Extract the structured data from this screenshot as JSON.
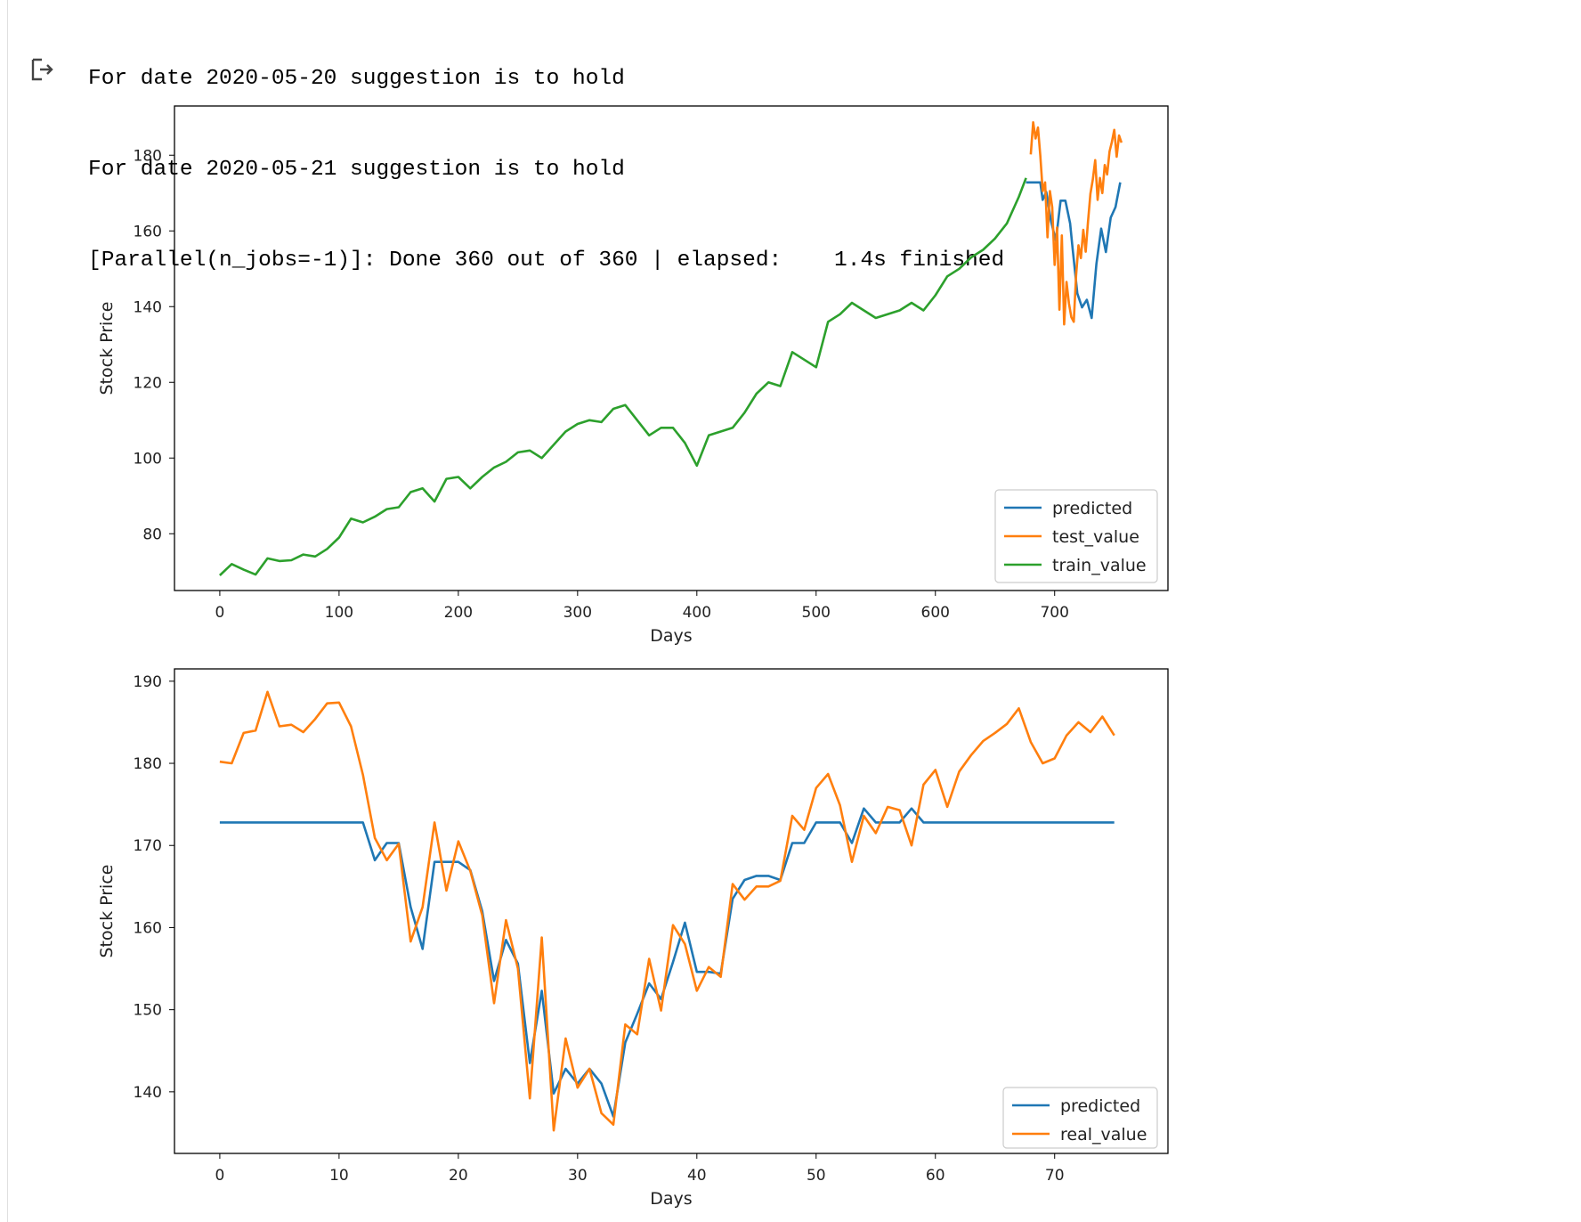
{
  "console": {
    "lines": [
      "For date 2020-05-20 suggestion is to hold",
      "For date 2020-05-21 suggestion is to hold",
      "[Parallel(n_jobs=-1)]: Done 360 out of 360 | elapsed:    1.4s finished"
    ],
    "output_icon": "output-arrow-icon"
  },
  "colors": {
    "predicted": "#1f77b4",
    "test_value": "#ff7f0e",
    "train_value": "#2ca02c",
    "real_value": "#ff7f0e"
  },
  "chart_data": [
    {
      "type": "line",
      "xlabel": "Days",
      "ylabel": "Stock Price",
      "xlim": [
        -38,
        795
      ],
      "ylim": [
        65,
        193
      ],
      "xticks": [
        0,
        100,
        200,
        300,
        400,
        500,
        600,
        700
      ],
      "yticks": [
        80,
        100,
        120,
        140,
        160,
        180
      ],
      "legend": "lower right",
      "grid": false,
      "series": [
        {
          "name": "predicted",
          "x": [
            676,
            688,
            690,
            693,
            697,
            701,
            705,
            709,
            713,
            715,
            719,
            723,
            727,
            731,
            735,
            739,
            743,
            747,
            751,
            755
          ],
          "y": [
            172.8,
            172.8,
            168.2,
            170.3,
            162.5,
            157.4,
            168.0,
            168.0,
            162.0,
            155.6,
            143.5,
            139.8,
            141.8,
            137.0,
            151.2,
            160.6,
            154.4,
            163.5,
            166.3,
            172.8
          ]
        },
        {
          "name": "test_value",
          "x": [
            680,
            682,
            684,
            686,
            688,
            690,
            692,
            694,
            696,
            698,
            700,
            702,
            704,
            706,
            708,
            710,
            712,
            714,
            716,
            718,
            720,
            722,
            724,
            726,
            728,
            730,
            732,
            734,
            736,
            738,
            740,
            742,
            744,
            746,
            748,
            750,
            752,
            754,
            756
          ],
          "y": [
            180.2,
            188.7,
            184.4,
            187.3,
            180.0,
            170.5,
            172.8,
            158.3,
            170.5,
            166.3,
            151.0,
            160.9,
            139.2,
            158.8,
            135.3,
            146.5,
            140.8,
            137.2,
            136.0,
            148.2,
            156.2,
            152.8,
            160.3,
            154.5,
            162.4,
            169.8,
            173.6,
            178.7,
            168.2,
            174.0,
            170.0,
            177.4,
            174.9,
            181.0,
            183.5,
            186.7,
            179.6,
            185.2,
            183.3
          ]
        },
        {
          "name": "train_value",
          "x": [
            0,
            10,
            20,
            30,
            40,
            50,
            60,
            70,
            80,
            90,
            100,
            110,
            120,
            130,
            140,
            150,
            160,
            170,
            180,
            190,
            200,
            210,
            220,
            230,
            240,
            250,
            260,
            270,
            280,
            290,
            300,
            310,
            320,
            330,
            340,
            350,
            360,
            370,
            380,
            390,
            400,
            410,
            420,
            430,
            440,
            450,
            460,
            470,
            480,
            490,
            500,
            510,
            520,
            530,
            540,
            550,
            560,
            570,
            580,
            590,
            600,
            610,
            620,
            630,
            640,
            650,
            660,
            670,
            676
          ],
          "y": [
            69.0,
            72.0,
            70.5,
            69.2,
            73.5,
            72.8,
            73.0,
            74.5,
            74.0,
            76.0,
            79.0,
            84.0,
            83.0,
            84.5,
            86.5,
            87.0,
            91.0,
            92.0,
            88.5,
            94.5,
            95.0,
            92.0,
            95.0,
            97.5,
            99.0,
            101.5,
            102.0,
            100.0,
            103.5,
            107.0,
            109.0,
            110.0,
            109.5,
            113.0,
            114.0,
            110.0,
            106.0,
            108.0,
            108.0,
            104.0,
            98.0,
            106.0,
            107.0,
            108.0,
            112.0,
            117.0,
            120.0,
            119.0,
            128.0,
            126.0,
            124.0,
            136.0,
            138.0,
            141.0,
            139.0,
            137.0,
            138.0,
            139.0,
            141.0,
            139.0,
            143.0,
            148.0,
            150.0,
            153.0,
            155.0,
            158.0,
            162.0,
            169.0,
            174.0
          ]
        }
      ]
    },
    {
      "type": "line",
      "xlabel": "Days",
      "ylabel": "Stock Price",
      "xlim": [
        -3.8,
        79.5
      ],
      "ylim": [
        132.5,
        191.5
      ],
      "xticks": [
        0,
        10,
        20,
        30,
        40,
        50,
        60,
        70
      ],
      "yticks": [
        140,
        150,
        160,
        170,
        180,
        190
      ],
      "legend": "lower right",
      "grid": false,
      "series": [
        {
          "name": "predicted",
          "x": [
            0,
            12,
            13,
            14,
            15,
            16,
            17,
            18,
            19,
            20,
            21,
            22,
            23,
            24,
            25,
            26,
            27,
            28,
            29,
            30,
            31,
            32,
            33,
            34,
            35,
            36,
            37,
            38,
            39,
            40,
            41,
            42,
            43,
            44,
            45,
            46,
            47,
            48,
            49,
            50,
            51,
            52,
            53,
            54,
            55,
            56,
            57,
            58,
            59,
            75
          ],
          "y": [
            172.8,
            172.8,
            168.2,
            170.3,
            170.3,
            162.5,
            157.4,
            168.0,
            168.0,
            168.0,
            167.0,
            162.0,
            153.5,
            158.5,
            155.6,
            143.5,
            152.3,
            139.8,
            142.8,
            141.0,
            142.8,
            141.0,
            137.0,
            146.0,
            149.5,
            153.2,
            151.3,
            155.8,
            160.6,
            154.6,
            154.6,
            154.4,
            163.5,
            165.8,
            166.3,
            166.3,
            165.8,
            170.3,
            170.3,
            172.8,
            172.8,
            172.8,
            170.3,
            174.5,
            172.8,
            172.8,
            172.8,
            174.5,
            172.8,
            172.8
          ]
        },
        {
          "name": "real_value",
          "x": [
            0,
            1,
            2,
            3,
            4,
            5,
            6,
            7,
            8,
            9,
            10,
            11,
            12,
            13,
            14,
            15,
            16,
            17,
            18,
            19,
            20,
            21,
            22,
            23,
            24,
            25,
            26,
            27,
            28,
            29,
            30,
            31,
            32,
            33,
            34,
            35,
            36,
            37,
            38,
            39,
            40,
            41,
            42,
            43,
            44,
            45,
            46,
            47,
            48,
            49,
            50,
            51,
            52,
            53,
            54,
            55,
            56,
            57,
            58,
            59,
            60,
            61,
            62,
            63,
            64,
            65,
            66,
            67,
            68,
            69,
            70,
            71,
            72,
            73,
            74,
            75
          ],
          "y": [
            180.2,
            180.0,
            183.7,
            184.0,
            188.7,
            184.5,
            184.7,
            183.8,
            185.4,
            187.3,
            187.4,
            184.5,
            178.6,
            170.9,
            168.2,
            170.2,
            158.3,
            162.5,
            172.8,
            164.5,
            170.5,
            166.9,
            161.5,
            150.8,
            160.9,
            155.0,
            139.2,
            158.8,
            135.3,
            146.5,
            140.5,
            142.8,
            137.4,
            136.0,
            148.2,
            147.0,
            156.2,
            149.9,
            160.3,
            158.0,
            152.3,
            155.2,
            154.0,
            165.3,
            163.4,
            165.0,
            165.0,
            165.7,
            173.6,
            171.9,
            177.0,
            178.7,
            174.9,
            168.0,
            173.6,
            171.5,
            174.7,
            174.3,
            170.0,
            177.4,
            179.2,
            174.7,
            179.0,
            181.0,
            182.7,
            183.7,
            184.8,
            186.7,
            182.6,
            180.0,
            180.6,
            183.4,
            185.0,
            183.8,
            185.7,
            183.4
          ]
        }
      ]
    }
  ]
}
